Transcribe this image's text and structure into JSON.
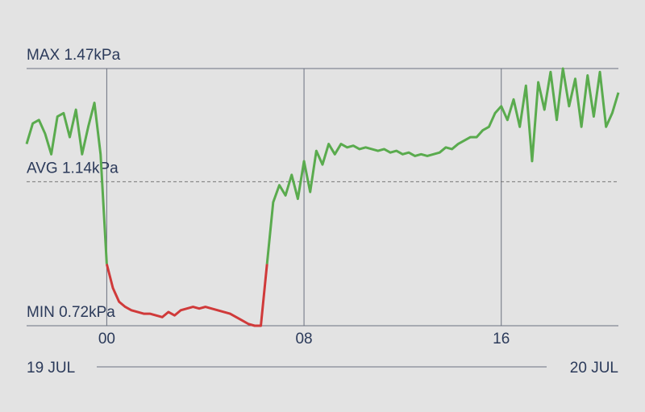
{
  "chart_data": {
    "type": "line",
    "ylim": [
      0.72,
      1.47
    ],
    "yticks": [
      {
        "value": 0.72,
        "label": "MIN 0.72kPa"
      },
      {
        "value": 1.14,
        "label": "AVG 1.14kPa"
      },
      {
        "value": 1.47,
        "label": "MAX 1.47kPa"
      }
    ],
    "xlim": [
      -3.25,
      20.75
    ],
    "xticks": [
      {
        "value": 0,
        "label": "00"
      },
      {
        "value": 8,
        "label": "08"
      },
      {
        "value": 16,
        "label": "16"
      }
    ],
    "date_labels": [
      "19 JUL",
      "20 JUL"
    ],
    "series": [
      {
        "color": "#5aab4e",
        "x": [
          -3.25,
          -3,
          -2.75,
          -2.5,
          -2.25,
          -2,
          -1.75,
          -1.5,
          -1.25,
          -1,
          -0.75,
          -0.5,
          -0.25,
          0
        ],
        "values": [
          1.25,
          1.31,
          1.32,
          1.28,
          1.22,
          1.33,
          1.34,
          1.27,
          1.35,
          1.22,
          1.3,
          1.37,
          1.22,
          0.9
        ]
      },
      {
        "color": "#d03a3a",
        "x": [
          0,
          0.25,
          0.5,
          0.75,
          1,
          1.25,
          1.5,
          1.75,
          2,
          2.25,
          2.5,
          2.75,
          3,
          3.25,
          3.5,
          3.75,
          4,
          4.25,
          4.5,
          4.75,
          5,
          5.25,
          5.5,
          5.75,
          6,
          6.25,
          6.5
        ],
        "values": [
          0.9,
          0.83,
          0.79,
          0.775,
          0.765,
          0.76,
          0.755,
          0.755,
          0.75,
          0.745,
          0.76,
          0.75,
          0.765,
          0.77,
          0.775,
          0.77,
          0.775,
          0.77,
          0.765,
          0.76,
          0.755,
          0.745,
          0.735,
          0.725,
          0.72,
          0.72,
          0.9
        ]
      },
      {
        "color": "#5aab4e",
        "x": [
          6.5,
          6.75,
          7,
          7.25,
          7.5,
          7.75,
          8,
          8.25,
          8.5,
          8.75,
          9,
          9.25,
          9.5,
          9.75,
          10,
          10.25,
          10.5,
          10.75,
          11,
          11.25,
          11.5,
          11.75,
          12,
          12.25,
          12.5,
          12.75,
          13,
          13.25,
          13.5,
          13.75,
          14,
          14.25,
          14.5,
          14.75,
          15,
          15.25,
          15.5,
          15.75,
          16,
          16.25,
          16.5,
          16.75,
          17,
          17.25,
          17.5,
          17.75,
          18,
          18.25,
          18.5,
          18.75,
          19,
          19.25,
          19.5,
          19.75,
          20,
          20.25,
          20.5,
          20.75
        ],
        "values": [
          0.9,
          1.08,
          1.13,
          1.1,
          1.16,
          1.09,
          1.2,
          1.11,
          1.23,
          1.19,
          1.25,
          1.22,
          1.25,
          1.24,
          1.245,
          1.235,
          1.24,
          1.235,
          1.23,
          1.235,
          1.225,
          1.23,
          1.22,
          1.225,
          1.215,
          1.22,
          1.215,
          1.22,
          1.225,
          1.24,
          1.235,
          1.25,
          1.26,
          1.27,
          1.27,
          1.29,
          1.3,
          1.34,
          1.36,
          1.32,
          1.38,
          1.3,
          1.42,
          1.2,
          1.43,
          1.35,
          1.46,
          1.32,
          1.47,
          1.36,
          1.44,
          1.3,
          1.45,
          1.33,
          1.46,
          1.3,
          1.34,
          1.4
        ]
      }
    ]
  }
}
